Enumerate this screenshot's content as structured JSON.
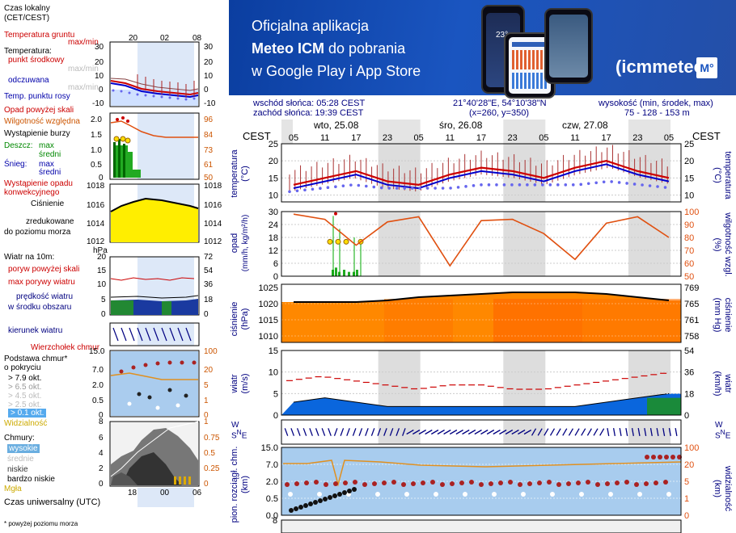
{
  "banner": {
    "line1": "Oficjalna aplikacja",
    "line2_bold": "Meteo ICM",
    "line2_rest": "do pobrania",
    "line3": "w Google Play i App Store",
    "brand": "icmmeteo",
    "brand_badge": "M°",
    "phone_temp": "23°"
  },
  "info": {
    "sunrise": "wschód słońca: 05:28 CEST",
    "sunset": "zachód słońca: 19:39 CEST",
    "coords": "21°40'28\"E, 54°10'38\"N",
    "grid": "(x=260,  y=350)",
    "altitude_label": "wysokość (min, środek, max)",
    "altitude_values": "75 - 128 - 153 m"
  },
  "legend": {
    "timezone": "Czas lokalny\n(CET/CEST)",
    "temp_ground": "Temperatura gruntu",
    "temp_ground_mm": "max/min",
    "temp_title": "Temperatura:",
    "temp_mid": "punkt środkowy",
    "temp_mid_mm": "max/min",
    "temp_feel": "odczuwana",
    "temp_feel_mm": "max/min",
    "temp_dew": "Temp. punktu rosy",
    "precip_above": "Opad powyżej skali",
    "humidity": "Wilgotność względna",
    "storm": "Wystąpienie burzy",
    "rain": "Deszcz:",
    "rain_max": "max",
    "rain_mid": "średni",
    "snow": "Śnieg:",
    "snow_max": "max",
    "snow_mid": "średni",
    "precip_occ": "Wystąpienie opadu",
    "precip_conv": "konwekcyjnego",
    "pressure1": "Ciśnienie",
    "pressure2": "zredukowane",
    "pressure3": "do poziomu morza",
    "pressure_unit": "hPa",
    "wind_title": "Wiatr na 10m:",
    "gust_above": "poryw powyżej skali",
    "gust_max": "max porywy wiatru",
    "wind_speed1": "prędkość wiatru",
    "wind_speed2": "w środku obszaru",
    "wind_dir": "kierunek wiatru",
    "wind_tip": "Wierzchołek chmur",
    "cloud_base1": "Podstawa chmur*",
    "cloud_base2": "o pokryciu",
    "okt79": "> 7.9 okt.",
    "okt65": "> 6.5 okt.",
    "okt45": "> 4.5 okt.",
    "okt25": "> 2.5 okt.",
    "okt01": "> 0.1 okt.",
    "visibility": "Widzialność",
    "clouds": "Chmury:",
    "cl_high": "wysokie",
    "cl_mid": "średnie",
    "cl_low": "niskie",
    "cl_vlow": "bardzo niskie",
    "fog": "Mgła",
    "utc": "Czas uniwersalny (UTC)",
    "footnote": "* powyżej poziomu morza",
    "top_hours": [
      "20",
      "02",
      "08"
    ],
    "bottom_hours": [
      "18",
      "00",
      "06"
    ]
  },
  "mini_axes": {
    "temp_left": [
      "30",
      "20",
      "10",
      "0",
      "-10"
    ],
    "temp_right": [
      "30",
      "20",
      "10",
      "0",
      "-10"
    ],
    "precip_left": [
      "2.0",
      "1.5",
      "1.0",
      "0.5",
      "0"
    ],
    "hum_right": [
      "96",
      "84",
      "73",
      "61",
      "50"
    ],
    "press_left": [
      "1018",
      "1016",
      "1014",
      "1012"
    ],
    "press_right": [
      "1018",
      "1016",
      "1014",
      "1012"
    ],
    "wind_left": [
      "20",
      "15",
      "10",
      "5",
      "0"
    ],
    "wind_right": [
      "72",
      "54",
      "36",
      "18",
      "0"
    ],
    "cloud_left": [
      "15.0",
      "7.0",
      "2.0",
      "0.5",
      "0"
    ],
    "cloud_right": [
      "100",
      "20",
      "5",
      "1",
      "0"
    ],
    "cl_left": [
      "8",
      "6",
      "4",
      "2",
      "0"
    ],
    "cl_right": [
      "1",
      "0.75",
      "0.5",
      "0.25",
      "0"
    ]
  },
  "main": {
    "days": [
      "wto, 25.08",
      "śro, 26.08",
      "czw, 27.08"
    ],
    "hours": [
      "05",
      "11",
      "17",
      "23",
      "05",
      "11",
      "17",
      "23",
      "05",
      "11",
      "17",
      "23",
      "05"
    ],
    "tz_label": "CEST",
    "temp": {
      "left_label": "temperatura",
      "left_unit": "(°C)",
      "right_label": "temperatura",
      "right_unit": "(°C)",
      "ticks": [
        "25",
        "20",
        "15",
        "10"
      ]
    },
    "precip": {
      "left_label": "opad",
      "left_unit": "(mm/h, kg/m²/h)",
      "right_label": "wilgotność wzgl.",
      "right_unit": "(%)",
      "ticks_left": [
        "30",
        "24",
        "18",
        "12",
        "6",
        "0"
      ],
      "ticks_right": [
        "100",
        "90",
        "80",
        "70",
        "60",
        "50"
      ]
    },
    "pressure": {
      "left_label": "ciśnienie",
      "left_unit": "(hPa)",
      "right_label": "ciśnienie",
      "right_unit": "(mm Hg)",
      "ticks_left": [
        "1025",
        "1020",
        "1015",
        "1010"
      ],
      "ticks_right": [
        "769",
        "765",
        "761",
        "758"
      ]
    },
    "wind": {
      "left_label": "wiatr",
      "left_unit": "(m/s)",
      "right_label": "wiatr",
      "right_unit": "(km/h)",
      "ticks_left": [
        "15",
        "10",
        "5",
        "0"
      ],
      "ticks_right": [
        "54",
        "36",
        "18",
        "0"
      ]
    },
    "clouds": {
      "left_label": "pion. rozciągł. chm.",
      "left_unit": "(km)",
      "right_label": "widzialność",
      "right_unit": "(km)",
      "ticks_left": [
        "15.0",
        "7.0",
        "2.0",
        "0.5",
        "0.0"
      ],
      "ticks_right": [
        "100",
        "20",
        "5",
        "1",
        "0"
      ]
    },
    "bottom_tick": "8"
  },
  "colors": {
    "temp_line": "#cc0000",
    "feel_line": "#0000cc",
    "dew_points": "#6666ee",
    "humidity_line": "#e05010",
    "pressure_fill": "#ff8800",
    "wind_fill": "#0a66dd",
    "gust": "#cc0000",
    "night": "#dddddd",
    "banner": "#1a55c0"
  },
  "chart_data": [
    {
      "type": "line",
      "title": "temperatura",
      "x": [
        "05",
        "11",
        "17",
        "23",
        "05",
        "11",
        "17",
        "23",
        "05",
        "11",
        "17",
        "23",
        "05"
      ],
      "series": [
        {
          "values": [
            13,
            15,
            17,
            14,
            13,
            16,
            18,
            17,
            15,
            18,
            20,
            17,
            15
          ]
        },
        {
          "values": [
            12,
            14,
            16,
            13,
            12,
            15,
            17,
            16,
            14,
            17,
            19,
            16,
            14
          ]
        },
        {
          "values": [
            11,
            12,
            13,
            12,
            12,
            12,
            13,
            13,
            13,
            13,
            14,
            13,
            12
          ]
        }
      ],
      "ylim": [
        8,
        25
      ]
    },
    {
      "type": "line",
      "title": "wilgotność wzgl.",
      "x": [
        "05",
        "11",
        "17",
        "23",
        "05",
        "11",
        "17",
        "23",
        "05",
        "11",
        "17",
        "23",
        "05"
      ],
      "series": [
        {
          "values": [
            98,
            94,
            74,
            92,
            96,
            58,
            93,
            94,
            83,
            63,
            91,
            96,
            80
          ]
        }
      ],
      "ylim": [
        50,
        100
      ]
    },
    {
      "type": "area",
      "title": "ciśnienie",
      "x": [
        "05",
        "11",
        "17",
        "23",
        "05",
        "11",
        "17",
        "23",
        "05",
        "11",
        "17",
        "23",
        "05"
      ],
      "series": [
        {
          "values": [
            1020.5,
            1020.5,
            1020.5,
            1021,
            1022,
            1022.5,
            1023,
            1023.5,
            1023.5,
            1023.5,
            1023,
            1022,
            1021
          ]
        }
      ],
      "ylim": [
        1008,
        1026
      ]
    },
    {
      "type": "area",
      "title": "wiatr",
      "x": [
        "05",
        "11",
        "17",
        "23",
        "05",
        "11",
        "17",
        "23",
        "05",
        "11",
        "17",
        "23",
        "05"
      ],
      "series": [
        {
          "values": [
            3,
            4,
            3,
            2,
            2,
            2,
            2,
            2,
            2,
            2,
            3,
            4,
            5
          ]
        },
        {
          "values": [
            8,
            9,
            8,
            7,
            6,
            7,
            7,
            6,
            6,
            7,
            8,
            9,
            10
          ]
        }
      ],
      "ylim": [
        0,
        15
      ]
    }
  ]
}
